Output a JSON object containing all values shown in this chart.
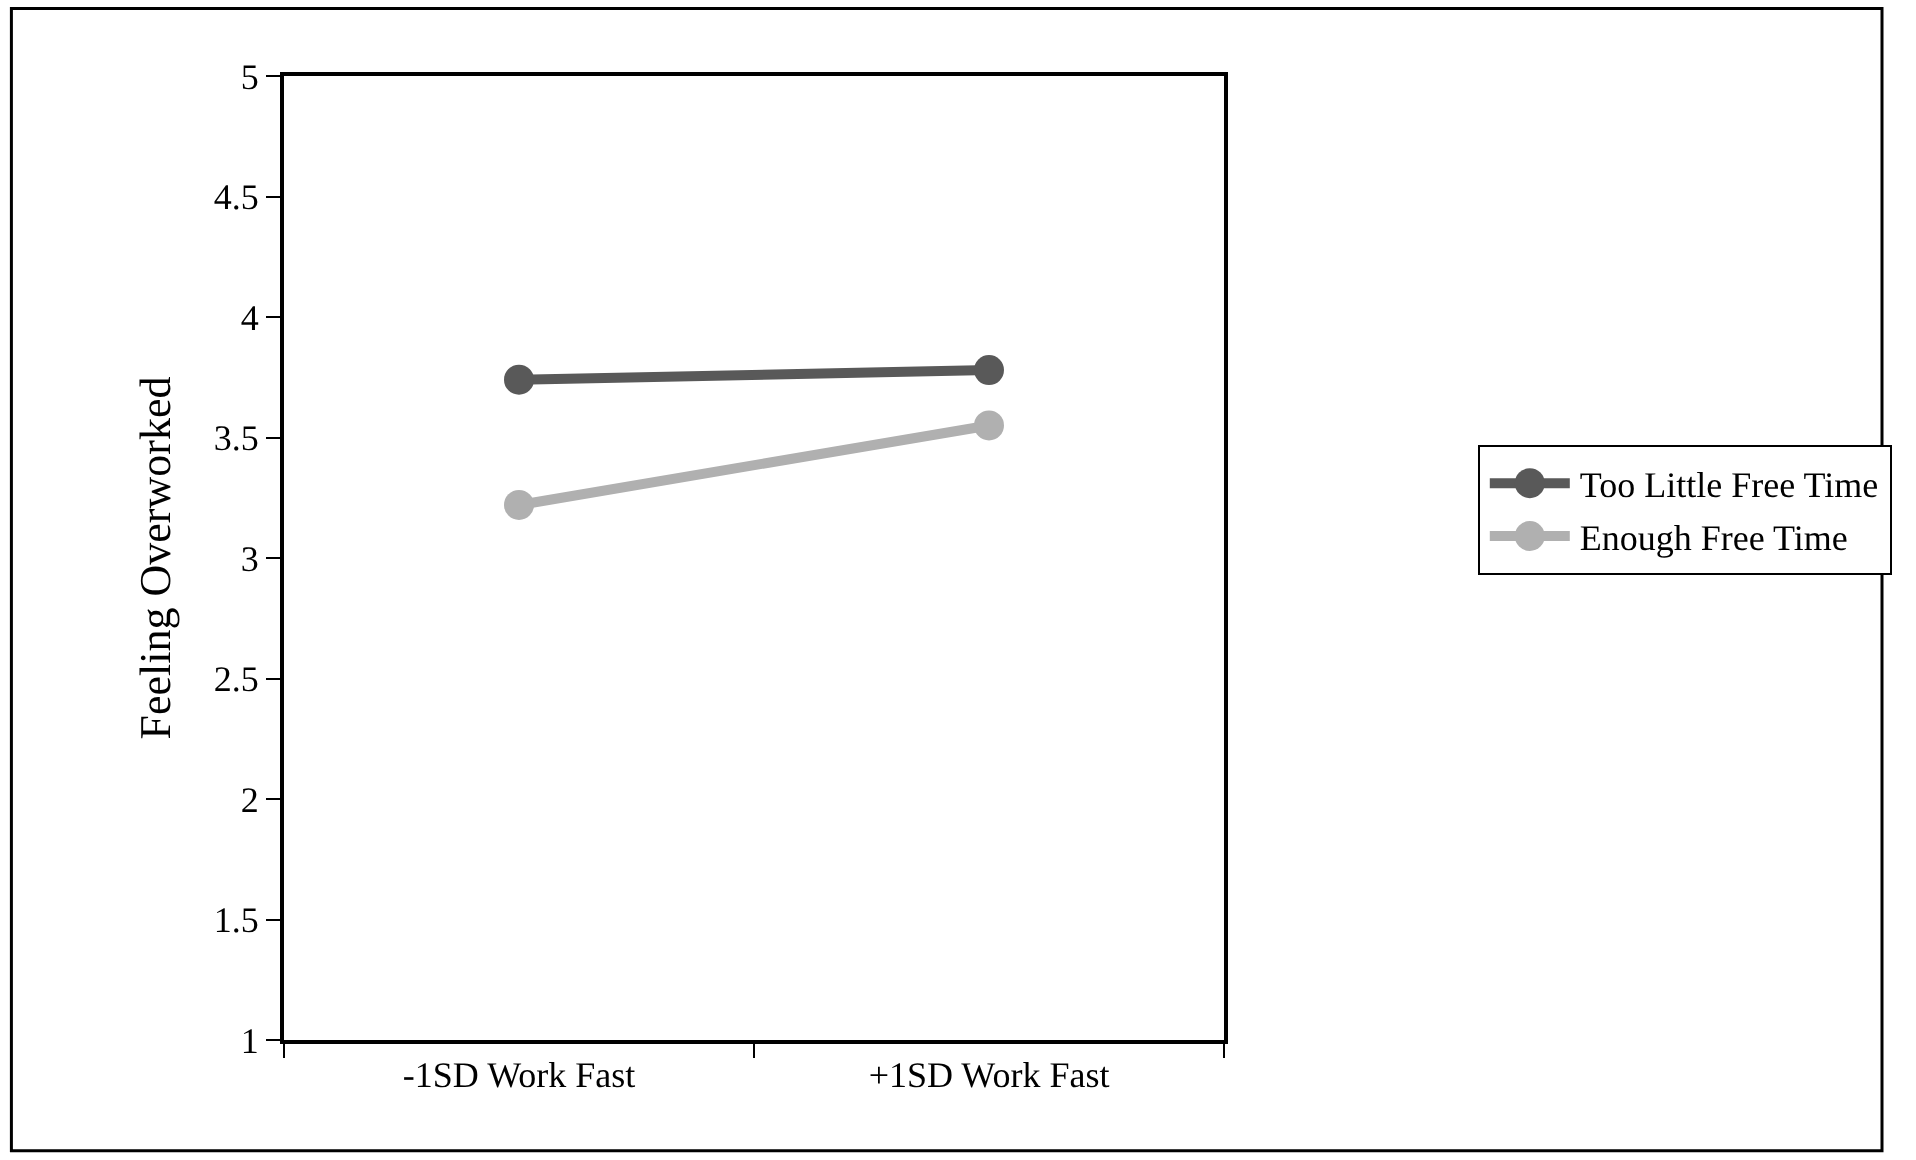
{
  "chart_data": {
    "type": "line",
    "ylabel": "Feeling Overworked",
    "categories": [
      "-1SD Work Fast",
      "+1SD Work Fast"
    ],
    "series": [
      {
        "name": "Too Little Free Time",
        "color": "#595959",
        "values": [
          3.74,
          3.78
        ]
      },
      {
        "name": "Enough Free Time",
        "color": "#b0b0b0",
        "values": [
          3.22,
          3.55
        ]
      }
    ],
    "ylim": [
      1,
      5
    ],
    "yticks": [
      1,
      1.5,
      2,
      2.5,
      3,
      3.5,
      4,
      4.5,
      5
    ],
    "legend": "right",
    "marker": "circle",
    "line_style": "solid"
  }
}
